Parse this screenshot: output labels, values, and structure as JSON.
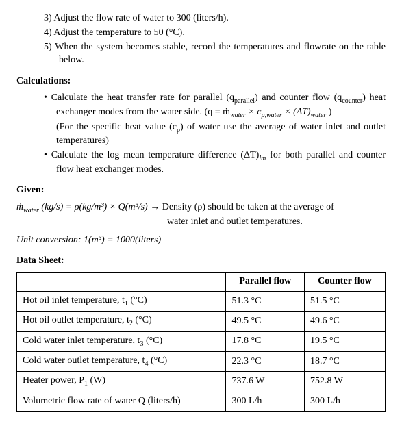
{
  "steps": {
    "s3": "3)  Adjust the flow rate of water to 300 (liters/h).",
    "s4": "4)  Adjust the temperature to 50 (°C).",
    "s5": "5)  When the system becomes stable, record the temperatures and flowrate on the table below."
  },
  "headings": {
    "calculations": "Calculations:",
    "given": "Given:",
    "datasheet": "Data Sheet:"
  },
  "calc": {
    "b1a": "Calculate the heat transfer rate for parallel (q",
    "b1a_sub": "parallel",
    "b1b": ") and counter flow (q",
    "b1b_sub": "counter",
    "b1c": ") heat exchanger modes from the water side. (q = ṁ",
    "b1c_sub": "water",
    "b1d": " × c",
    "b1d_sub": "p,water",
    "b1e": " × (ΔT)",
    "b1e_sub": "water",
    "b1f": " )",
    "b1g": "(For the specific heat value (c",
    "b1g_sub": "p",
    "b1h": ") of water use the average of water inlet and outlet temperatures)",
    "b2a": "Calculate the log mean temperature difference (ΔT)",
    "b2a_sub": "lm",
    "b2b": " for both parallel and counter flow heat exchanger modes."
  },
  "given": {
    "eq_lhs": "ṁ",
    "eq_lhs_sub": "water",
    "eq_units": " (kg/s) = ρ(kg/m³) × Q(m³/s)  →  ",
    "eq_note": "Density (ρ) should be taken at the average of",
    "eq_note2": "water inlet and outlet temperatures.",
    "unitconv": "Unit conversion: 1(m³) = 1000(liters)"
  },
  "table": {
    "col_parallel": "Parallel flow",
    "col_counter": "Counter flow",
    "rows": [
      {
        "label_a": "Hot oil inlet temperature, t",
        "label_sub": "1",
        "label_b": " (°C)",
        "pf": "51.3 °C",
        "cf": "51.5 °C"
      },
      {
        "label_a": "Hot oil outlet temperature, t",
        "label_sub": "2",
        "label_b": " (°C)",
        "pf": "49.5 °C",
        "cf": "49.6 °C"
      },
      {
        "label_a": "Cold water inlet temperature, t",
        "label_sub": "3",
        "label_b": " (°C)",
        "pf": "17.8 °C",
        "cf": "19.5 °C"
      },
      {
        "label_a": "Cold water outlet temperature, t",
        "label_sub": "4",
        "label_b": " (°C)",
        "pf": "22.3 °C",
        "cf": "18.7 °C"
      },
      {
        "label_a": "Heater power, P",
        "label_sub": "1",
        "label_b": " (W)",
        "pf": "737.6 W",
        "cf": "752.8 W"
      },
      {
        "label_a": "Volumetric flow rate of water Q (liters/h)",
        "label_sub": "",
        "label_b": "",
        "pf": "300 L/h",
        "cf": "300 L/h"
      }
    ]
  },
  "bullet_glyph": "•   "
}
